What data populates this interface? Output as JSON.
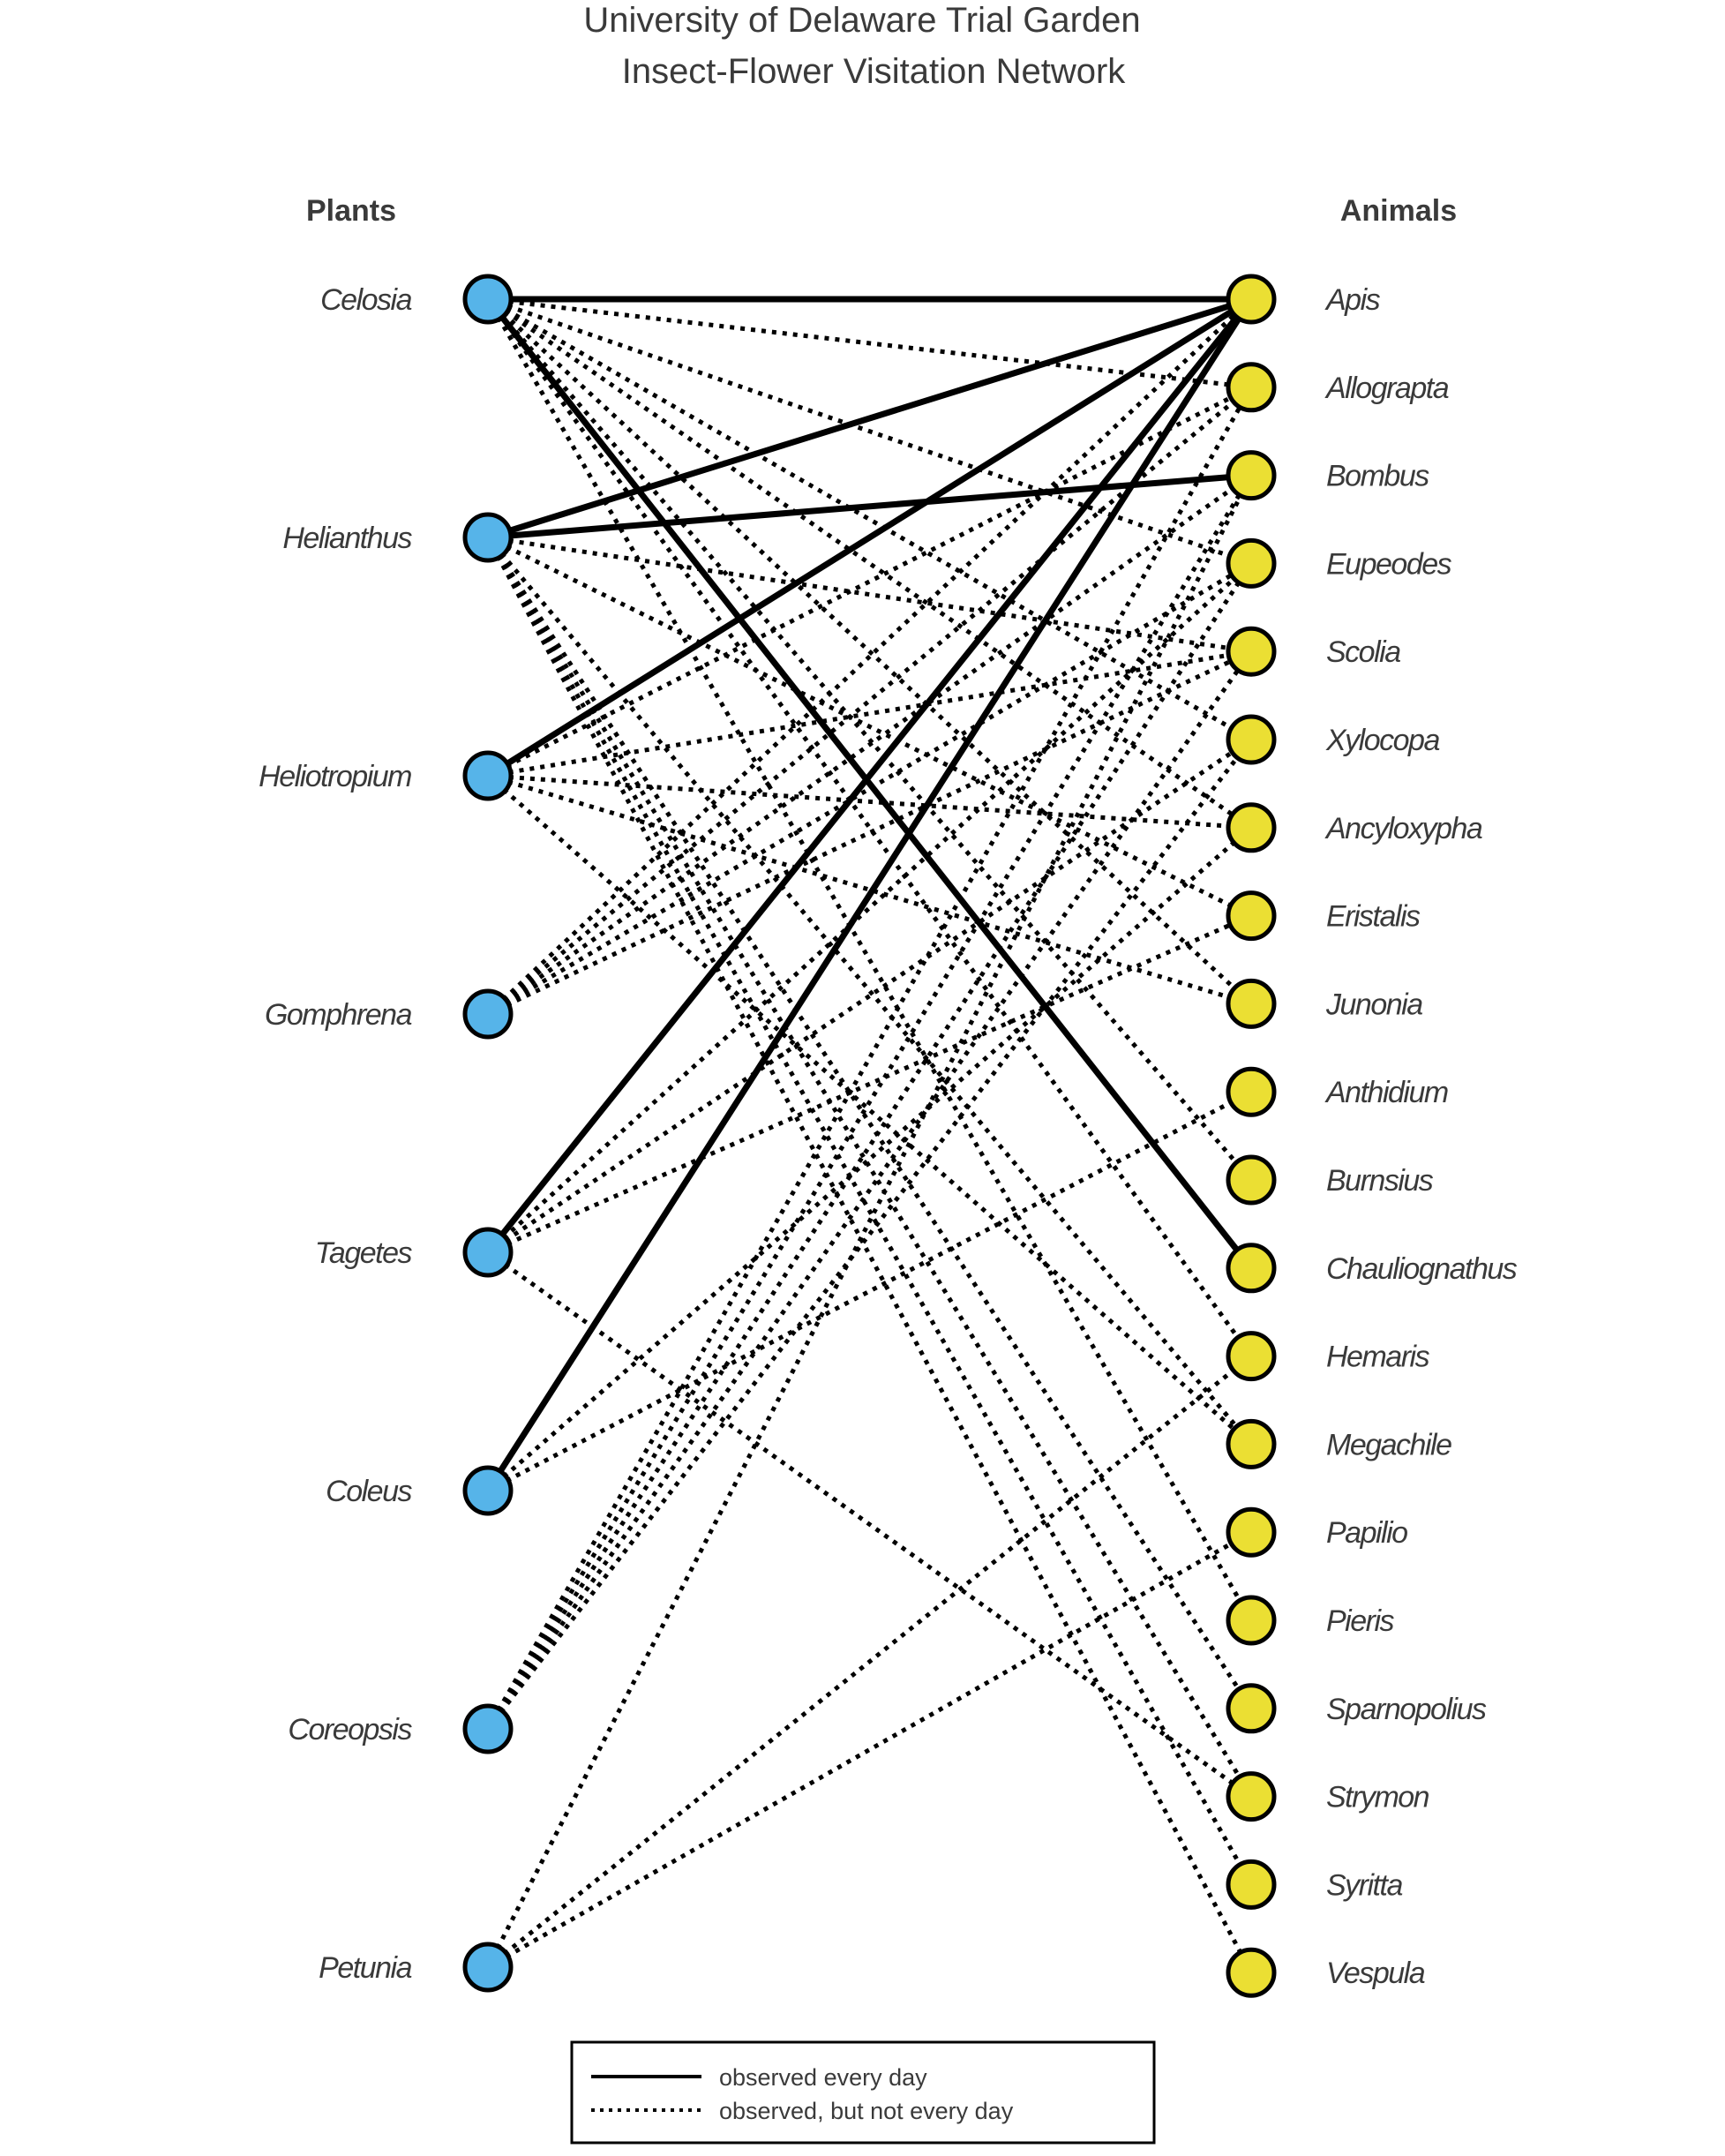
{
  "title": {
    "line1": "University of Delaware Trial Garden",
    "line2": "Insect-Flower Visitation Network"
  },
  "headers": {
    "plants": "Plants",
    "animals": "Animals"
  },
  "colors": {
    "plant": "#56b4e9",
    "animal": "#ebdf33",
    "edge": "#000000"
  },
  "plants": [
    "Celosia",
    "Helianthus",
    "Heliotropium",
    "Gomphrena",
    "Tagetes",
    "Coleus",
    "Coreopsis",
    "Petunia"
  ],
  "animals": [
    "Apis",
    "Allograpta",
    "Bombus",
    "Eupeodes",
    "Scolia",
    "Xylocopa",
    "Ancyloxypha",
    "Eristalis",
    "Junonia",
    "Anthidium",
    "Burnsius",
    "Chauliognathus",
    "Hemaris",
    "Megachile",
    "Papilio",
    "Pieris",
    "Sparnopolius",
    "Strymon",
    "Syritta",
    "Vespula"
  ],
  "edges": [
    {
      "plant": "Celosia",
      "animal": "Apis",
      "type": "solid"
    },
    {
      "plant": "Celosia",
      "animal": "Chauliognathus",
      "type": "solid"
    },
    {
      "plant": "Helianthus",
      "animal": "Apis",
      "type": "solid"
    },
    {
      "plant": "Helianthus",
      "animal": "Bombus",
      "type": "solid"
    },
    {
      "plant": "Heliotropium",
      "animal": "Apis",
      "type": "solid"
    },
    {
      "plant": "Tagetes",
      "animal": "Apis",
      "type": "solid"
    },
    {
      "plant": "Coleus",
      "animal": "Apis",
      "type": "solid"
    },
    {
      "plant": "Celosia",
      "animal": "Allograpta",
      "type": "dotted"
    },
    {
      "plant": "Celosia",
      "animal": "Eupeodes",
      "type": "dotted"
    },
    {
      "plant": "Celosia",
      "animal": "Xylocopa",
      "type": "dotted"
    },
    {
      "plant": "Celosia",
      "animal": "Ancyloxypha",
      "type": "dotted"
    },
    {
      "plant": "Celosia",
      "animal": "Junonia",
      "type": "dotted"
    },
    {
      "plant": "Celosia",
      "animal": "Burnsius",
      "type": "dotted"
    },
    {
      "plant": "Celosia",
      "animal": "Hemaris",
      "type": "dotted"
    },
    {
      "plant": "Celosia",
      "animal": "Pieris",
      "type": "dotted"
    },
    {
      "plant": "Helianthus",
      "animal": "Scolia",
      "type": "dotted"
    },
    {
      "plant": "Helianthus",
      "animal": "Eristalis",
      "type": "dotted"
    },
    {
      "plant": "Helianthus",
      "animal": "Megachile",
      "type": "dotted"
    },
    {
      "plant": "Helianthus",
      "animal": "Sparnopolius",
      "type": "dotted"
    },
    {
      "plant": "Helianthus",
      "animal": "Strymon",
      "type": "dotted"
    },
    {
      "plant": "Helianthus",
      "animal": "Syritta",
      "type": "dotted"
    },
    {
      "plant": "Helianthus",
      "animal": "Vespula",
      "type": "dotted"
    },
    {
      "plant": "Heliotropium",
      "animal": "Allograpta",
      "type": "dotted"
    },
    {
      "plant": "Heliotropium",
      "animal": "Scolia",
      "type": "dotted"
    },
    {
      "plant": "Heliotropium",
      "animal": "Ancyloxypha",
      "type": "dotted"
    },
    {
      "plant": "Heliotropium",
      "animal": "Junonia",
      "type": "dotted"
    },
    {
      "plant": "Heliotropium",
      "animal": "Megachile",
      "type": "dotted"
    },
    {
      "plant": "Gomphrena",
      "animal": "Apis",
      "type": "dotted"
    },
    {
      "plant": "Gomphrena",
      "animal": "Allograpta",
      "type": "dotted"
    },
    {
      "plant": "Gomphrena",
      "animal": "Bombus",
      "type": "dotted"
    },
    {
      "plant": "Gomphrena",
      "animal": "Eupeodes",
      "type": "dotted"
    },
    {
      "plant": "Gomphrena",
      "animal": "Scolia",
      "type": "dotted"
    },
    {
      "plant": "Tagetes",
      "animal": "Eupeodes",
      "type": "dotted"
    },
    {
      "plant": "Tagetes",
      "animal": "Xylocopa",
      "type": "dotted"
    },
    {
      "plant": "Tagetes",
      "animal": "Eristalis",
      "type": "dotted"
    },
    {
      "plant": "Tagetes",
      "animal": "Strymon",
      "type": "dotted"
    },
    {
      "plant": "Coleus",
      "animal": "Ancyloxypha",
      "type": "dotted"
    },
    {
      "plant": "Coleus",
      "animal": "Anthidium",
      "type": "dotted"
    },
    {
      "plant": "Coreopsis",
      "animal": "Allograpta",
      "type": "dotted"
    },
    {
      "plant": "Coreopsis",
      "animal": "Bombus",
      "type": "dotted"
    },
    {
      "plant": "Coreopsis",
      "animal": "Eupeodes",
      "type": "dotted"
    },
    {
      "plant": "Coreopsis",
      "animal": "Scolia",
      "type": "dotted"
    },
    {
      "plant": "Coreopsis",
      "animal": "Xylocopa",
      "type": "dotted"
    },
    {
      "plant": "Petunia",
      "animal": "Bombus",
      "type": "dotted"
    },
    {
      "plant": "Petunia",
      "animal": "Hemaris",
      "type": "dotted"
    },
    {
      "plant": "Petunia",
      "animal": "Papilio",
      "type": "dotted"
    }
  ],
  "legend": {
    "solid": "observed every day",
    "dotted": "observed, but not every day"
  }
}
